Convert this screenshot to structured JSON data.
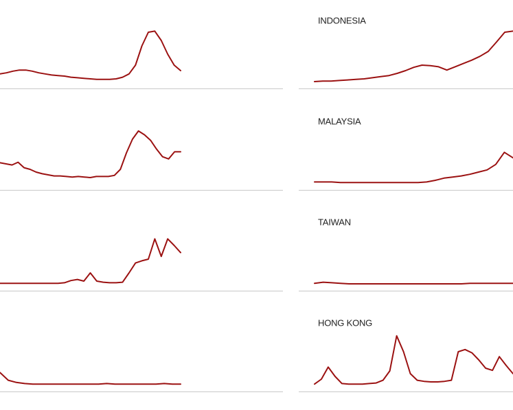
{
  "chart_data": [
    {
      "type": "line",
      "color": "#9b1111",
      "ylim": [
        0,
        100
      ],
      "values": [
        14,
        16,
        19,
        21,
        21,
        19,
        16,
        14,
        12,
        11,
        10,
        8,
        7,
        6,
        5,
        4,
        4,
        4,
        5,
        8,
        14,
        30,
        65,
        90,
        92,
        75,
        50,
        30,
        20
      ]
    },
    {
      "type": "line",
      "color": "#9b1111",
      "ylim": [
        0,
        100
      ],
      "values": [
        37,
        35,
        33,
        38,
        28,
        25,
        20,
        17,
        15,
        13,
        13,
        12,
        11,
        12,
        11,
        10,
        12,
        12,
        12,
        14,
        25,
        55,
        80,
        95,
        88,
        78,
        62,
        48,
        44,
        57,
        57
      ]
    },
    {
      "type": "line",
      "color": "#9b1111",
      "ylim": [
        0,
        100
      ],
      "values": [
        1,
        1,
        1,
        1,
        1,
        1,
        1,
        1,
        1,
        1,
        2,
        6,
        8,
        5,
        20,
        5,
        3,
        2,
        2,
        3,
        20,
        38,
        42,
        45,
        82,
        50,
        82,
        70,
        57
      ]
    },
    {
      "type": "line",
      "color": "#9b1111",
      "ylim": [
        0,
        100
      ],
      "values": [
        22,
        8,
        4,
        2,
        1,
        1,
        1,
        1,
        1,
        1,
        1,
        1,
        1,
        2,
        1,
        1,
        1,
        1,
        1,
        1,
        2,
        1,
        1
      ]
    },
    {
      "type": "line",
      "title": "INDONESIA",
      "color": "#9b1111",
      "ylim": [
        0,
        100
      ],
      "values": [
        0,
        1,
        1,
        2,
        3,
        4,
        5,
        7,
        9,
        11,
        15,
        20,
        26,
        30,
        29,
        27,
        21,
        27,
        33,
        39,
        46,
        55,
        72,
        90,
        92
      ]
    },
    {
      "type": "line",
      "title": "MALAYSIA",
      "color": "#9b1111",
      "ylim": [
        0,
        100
      ],
      "values": [
        2,
        2,
        2,
        1,
        1,
        1,
        1,
        1,
        1,
        1,
        1,
        1,
        1,
        2,
        5,
        9,
        11,
        13,
        16,
        20,
        24,
        34,
        56,
        46
      ]
    },
    {
      "type": "line",
      "title": "TAIWAN",
      "color": "#9b1111",
      "ylim": [
        0,
        100
      ],
      "values": [
        1,
        3,
        2,
        1,
        0,
        0,
        0,
        0,
        0,
        0,
        0,
        0,
        0,
        0,
        0,
        0,
        0,
        0,
        1,
        1,
        1,
        1,
        1,
        1
      ]
    },
    {
      "type": "line",
      "title": "HONG KONG",
      "color": "#9b1111",
      "ylim": [
        0,
        100
      ],
      "values": [
        1,
        10,
        32,
        15,
        2,
        1,
        1,
        1,
        2,
        3,
        8,
        25,
        89,
        60,
        20,
        8,
        6,
        5,
        5,
        6,
        8,
        60,
        64,
        58,
        45,
        30,
        26,
        51,
        35,
        20
      ]
    }
  ]
}
